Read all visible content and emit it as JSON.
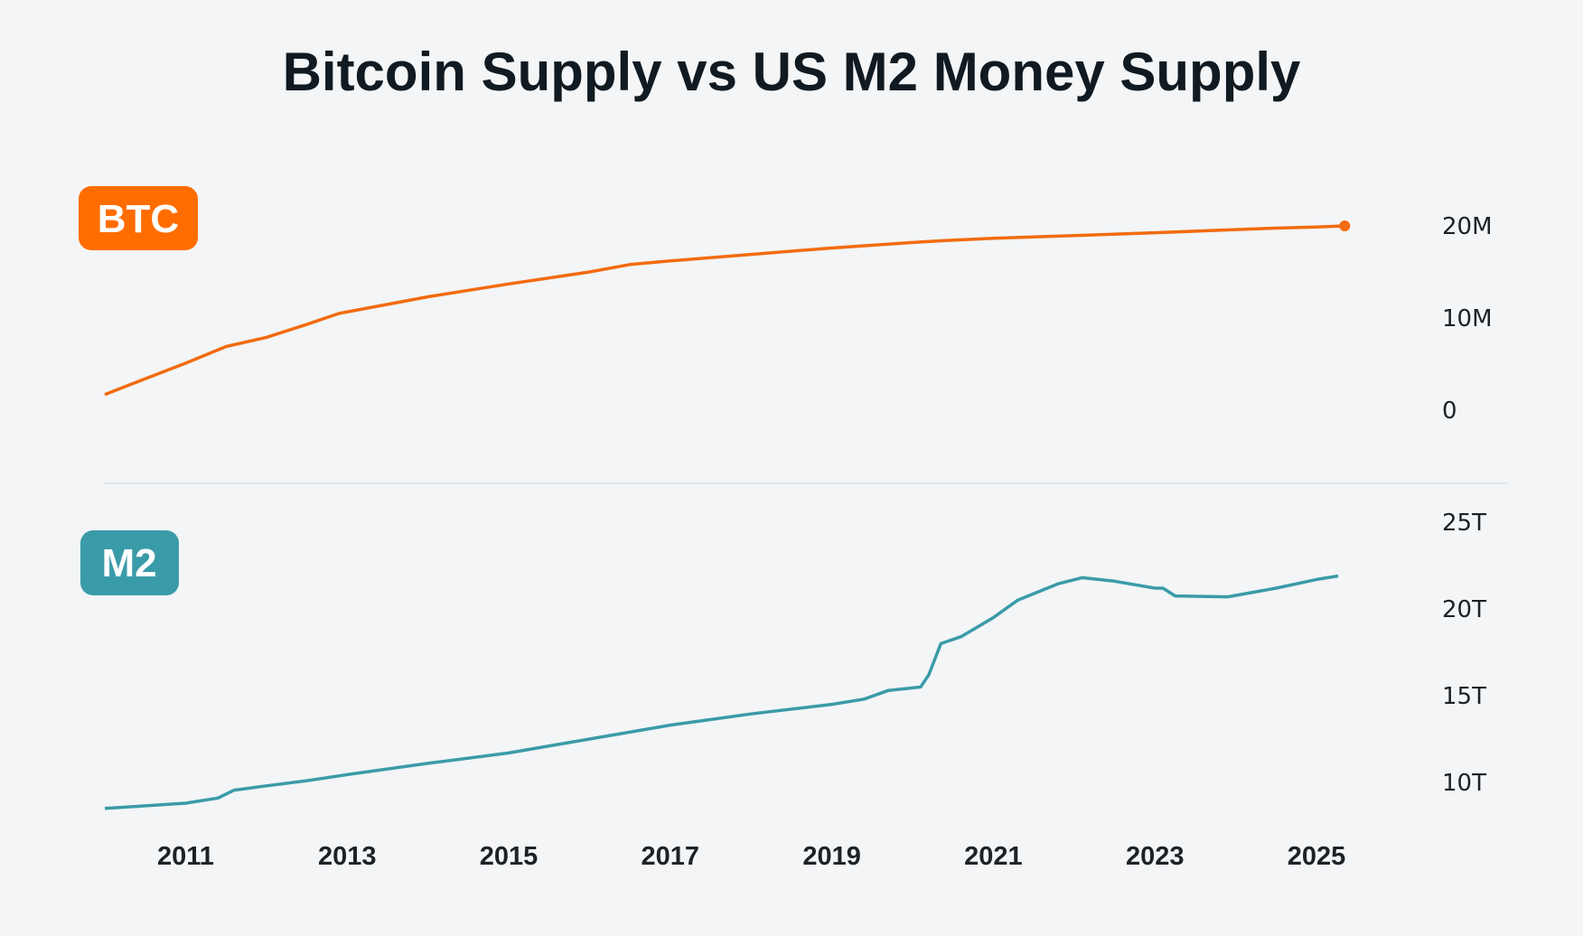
{
  "chart_data": [
    {
      "type": "line",
      "title": "Bitcoin Supply vs US M2 Money Supply",
      "label": "BTC",
      "color": "#f26b0f",
      "badge_color": "#ff6d00",
      "yticks": [
        {
          "value": 0,
          "label": "0"
        },
        {
          "value": 10,
          "label": "10M"
        },
        {
          "value": 20,
          "label": "20M"
        }
      ],
      "ylim": [
        0,
        20
      ],
      "x": [
        2010.0,
        2010.5,
        2011.0,
        2011.5,
        2012.0,
        2012.5,
        2012.9,
        2014.0,
        2015.0,
        2016.0,
        2016.5,
        2017.0,
        2018.0,
        2019.0,
        2020.0,
        2020.4,
        2021.0,
        2022.0,
        2023.0,
        2024.0,
        2024.5,
        2025.0,
        2025.35
      ],
      "values": [
        1.7,
        3.4,
        5.1,
        6.9,
        7.9,
        9.3,
        10.5,
        12.3,
        13.7,
        15.0,
        15.8,
        16.2,
        16.9,
        17.6,
        18.2,
        18.4,
        18.65,
        18.95,
        19.25,
        19.6,
        19.75,
        19.88,
        20.0
      ],
      "end_marker": true
    },
    {
      "type": "line",
      "label": "M2",
      "color": "#3a9ba8",
      "badge_color": "#3a9ba8",
      "yticks": [
        {
          "value": 10,
          "label": "10T"
        },
        {
          "value": 15,
          "label": "15T"
        },
        {
          "value": 20,
          "label": "20T"
        },
        {
          "value": 25,
          "label": "25T"
        }
      ],
      "ylim": [
        10,
        25
      ],
      "x": [
        2010.0,
        2011.0,
        2011.4,
        2011.6,
        2012.0,
        2012.5,
        2013.0,
        2014.0,
        2015.0,
        2016.0,
        2017.0,
        2018.0,
        2019.0,
        2019.4,
        2019.7,
        2020.1,
        2020.2,
        2020.35,
        2020.6,
        2021.0,
        2021.3,
        2021.8,
        2022.1,
        2022.5,
        2023.0,
        2023.1,
        2023.25,
        2023.9,
        2024.5,
        2025.0,
        2025.27
      ],
      "values": [
        8.5,
        8.8,
        9.1,
        9.55,
        9.8,
        10.1,
        10.45,
        11.1,
        11.7,
        12.5,
        13.3,
        13.95,
        14.5,
        14.8,
        15.3,
        15.5,
        16.2,
        18.0,
        18.4,
        19.5,
        20.5,
        21.45,
        21.8,
        21.6,
        21.2,
        21.2,
        20.75,
        20.7,
        21.2,
        21.7,
        21.9
      ]
    }
  ],
  "xaxis": {
    "xlim": [
      2010.0,
      2025.35
    ],
    "ticks": [
      {
        "value": 2011,
        "label": "2011"
      },
      {
        "value": 2013,
        "label": "2013"
      },
      {
        "value": 2015,
        "label": "2015"
      },
      {
        "value": 2017,
        "label": "2017"
      },
      {
        "value": 2019,
        "label": "2019"
      },
      {
        "value": 2021,
        "label": "2021"
      },
      {
        "value": 2023,
        "label": "2023"
      },
      {
        "value": 2025,
        "label": "2025"
      }
    ]
  }
}
